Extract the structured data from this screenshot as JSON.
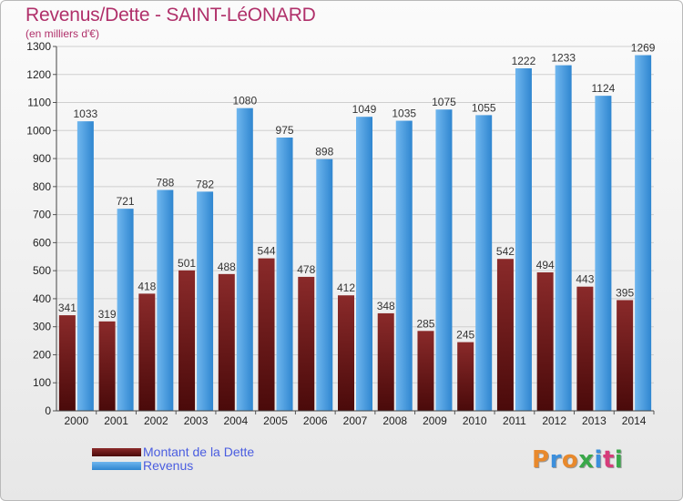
{
  "title": "Revenus/Dette - SAINT-LéONARD",
  "subtitle": "(en milliers d'€)",
  "colors": {
    "debt_top": "#8a2a2a",
    "debt_bottom": "#4a0a0a",
    "revenue_top": "#6fb6ee",
    "revenue_bottom": "#2f86d0",
    "title": "#b0306a",
    "legend_text": "#4a5de0"
  },
  "chart_data": {
    "type": "bar",
    "title": "Revenus/Dette - SAINT-LéONARD",
    "subtitle": "(en milliers d'€)",
    "categories": [
      "2000",
      "2001",
      "2002",
      "2003",
      "2004",
      "2005",
      "2006",
      "2007",
      "2008",
      "2009",
      "2010",
      "2011",
      "2012",
      "2013",
      "2014"
    ],
    "series": [
      {
        "name": "Montant de la Dette",
        "values": [
          341,
          319,
          418,
          501,
          488,
          544,
          478,
          412,
          348,
          285,
          245,
          542,
          494,
          443,
          395
        ]
      },
      {
        "name": "Revenus",
        "values": [
          1033,
          721,
          788,
          782,
          1080,
          975,
          898,
          1049,
          1035,
          1075,
          1055,
          1222,
          1233,
          1124,
          1269
        ]
      }
    ],
    "ylim": [
      0,
      1300
    ],
    "yticks": [
      0,
      100,
      200,
      300,
      400,
      500,
      600,
      700,
      800,
      900,
      1000,
      1100,
      1200,
      1300
    ],
    "grid": true,
    "legend_position": "bottom-left"
  },
  "legend": {
    "items": [
      {
        "key": "debt",
        "label": "Montant de la Dette"
      },
      {
        "key": "rev",
        "label": "Revenus"
      }
    ]
  },
  "logo": {
    "text": "Proxiti",
    "letters": [
      {
        "ch": "P",
        "color": "#e8892c"
      },
      {
        "ch": "r",
        "color": "#3c8fdc"
      },
      {
        "ch": "o",
        "color": "#e8892c"
      },
      {
        "ch": "x",
        "color": "#3aa84a"
      },
      {
        "ch": "i",
        "color": "#3c8fdc"
      },
      {
        "ch": "t",
        "color": "#d63c7a"
      },
      {
        "ch": "i",
        "color": "#3aa84a"
      }
    ]
  }
}
